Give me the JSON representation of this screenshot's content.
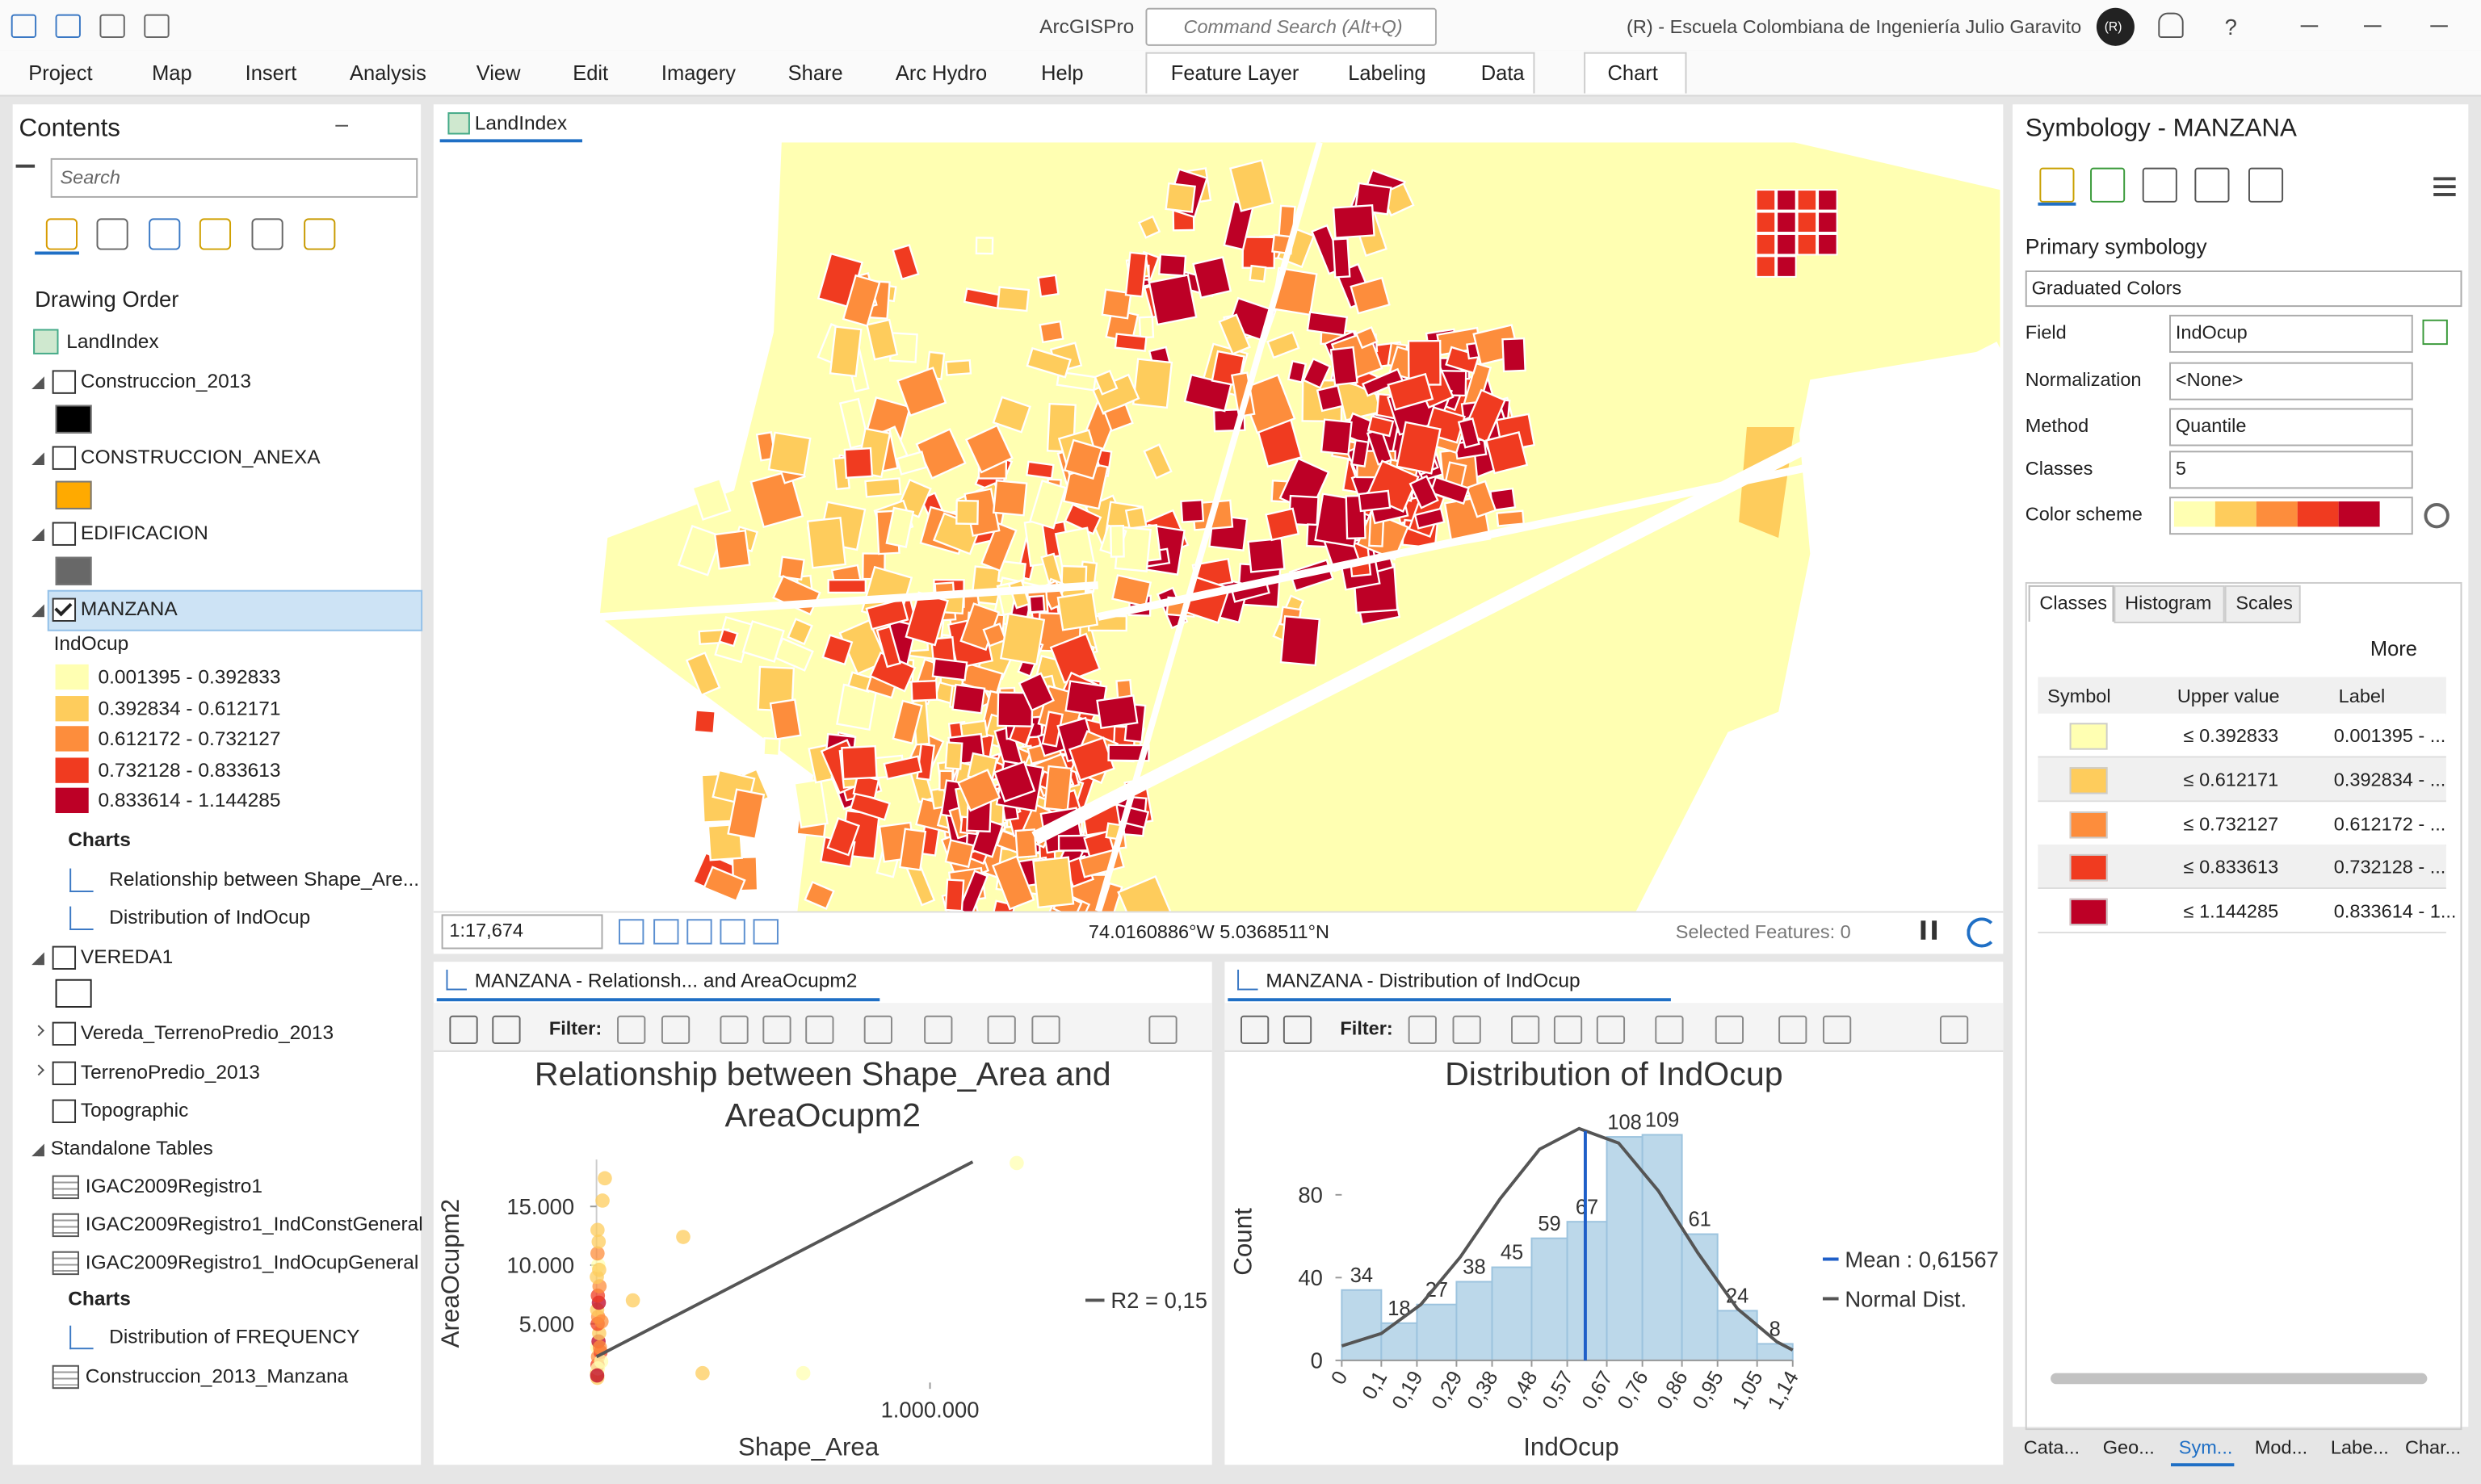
{
  "title_bar": {
    "app": "ArcGISPro",
    "search": "Command Search (Alt+Q)",
    "user": "(R) - Escuela Colombiana de Ingeniería Julio Garavito",
    "avatar": "(R)",
    "help": "?"
  },
  "ribbon_tabs": [
    "Project",
    "Map",
    "Insert",
    "Analysis",
    "View",
    "Edit",
    "Imagery",
    "Share",
    "Arc Hydro",
    "Help"
  ],
  "context_tabs": [
    "Feature Layer",
    "Labeling",
    "Data",
    "Chart"
  ],
  "contents": {
    "title": "Contents",
    "search": "Search",
    "drawing_order": "Drawing Order",
    "map": "LandIndex",
    "layers": [
      {
        "name": "Construccion_2013",
        "swatch": "#000000"
      },
      {
        "name": "CONSTRUCCION_ANEXA",
        "swatch": "#ffaa00"
      },
      {
        "name": "EDIFICACION",
        "swatch": "#686868"
      }
    ],
    "manzana": {
      "name": "MANZANA",
      "field": "IndOcup",
      "classes": [
        "0.001395 - 0.392833",
        "0.392834 - 0.612171",
        "0.612172 - 0.732127",
        "0.732128 - 0.833613",
        "0.833614 - 1.144285"
      ],
      "charts_heading": "Charts",
      "charts": [
        "Relationship between Shape_Are...",
        "Distribution of IndOcup"
      ]
    },
    "vereda": {
      "name": "VEREDA1",
      "swatch": "#ffffff"
    },
    "more_layers": [
      "Vereda_TerrenoPredio_2013",
      "TerrenoPredio_2013",
      "Topographic"
    ],
    "tables_heading": "Standalone Tables",
    "tables": [
      "IGAC2009Registro1",
      "IGAC2009Registro1_IndConstGeneral",
      "IGAC2009Registro1_IndOcupGeneral"
    ],
    "tables_charts_heading": "Charts",
    "tables_charts": [
      "Distribution of FREQUENCY"
    ],
    "last_table": "Construccion_2013_Manzana"
  },
  "map": {
    "tab": "LandIndex",
    "scale": "1:17,674",
    "coords": "74.0160886°W 5.0368511°N",
    "selected": "Selected Features: 0"
  },
  "symbology": {
    "title": "Symbology - MANZANA",
    "primary": "Primary symbology",
    "renderer": "Graduated Colors",
    "fields": [
      {
        "label": "Field",
        "value": "IndOcup"
      },
      {
        "label": "Normalization",
        "value": "<None>"
      },
      {
        "label": "Method",
        "value": "Quantile"
      },
      {
        "label": "Classes",
        "value": "5"
      },
      {
        "label": "Color scheme"
      }
    ],
    "tabs": [
      "Classes",
      "Histogram",
      "Scales"
    ],
    "more": "More",
    "columns": [
      "Symbol",
      "Upper value",
      "Label"
    ],
    "classes": [
      {
        "color": "#ffffb2",
        "upper": "≤  0.392833",
        "label": "0.001395 - ..."
      },
      {
        "color": "#fecc5c",
        "upper": "≤  0.612171",
        "label": "0.392834 - ..."
      },
      {
        "color": "#fd8d3c",
        "upper": "≤  0.732127",
        "label": "0.612172 - ..."
      },
      {
        "color": "#f03b20",
        "upper": "≤  0.833613",
        "label": "0.732128 - ..."
      },
      {
        "color": "#bd0026",
        "upper": "≤  1.144285",
        "label": "0.833614 - 1..."
      }
    ]
  },
  "bottom_tabs": [
    "Cata...",
    "Geo...",
    "Sym...",
    "Mod...",
    "Labe...",
    "Char..."
  ],
  "scatter_pane": {
    "tab": "MANZANA - Relationsh... and AreaOcupm2",
    "filter": "Filter:"
  },
  "histogram_pane": {
    "tab": "MANZANA - Distribution of IndOcup",
    "filter": "Filter:"
  },
  "scatter_chart": {
    "type": "scatter",
    "title": "Relationship between Shape_Area and AreaOcupm2",
    "x_label": "Shape_Area",
    "y_label": "AreaOcupm2",
    "xlim": [
      0,
      1300000
    ],
    "ylim": [
      0,
      19000
    ],
    "xticks": [
      {
        "value": 1000000,
        "label": "1.000.000"
      }
    ],
    "yticks": [
      {
        "value": 5000,
        "label": "5.000"
      },
      {
        "value": 10000,
        "label": "10.000"
      },
      {
        "value": 15000,
        "label": "15.000"
      }
    ],
    "x": [
      1500,
      3000,
      4500,
      2500,
      6000,
      8000,
      3500,
      5000,
      2000,
      7000,
      4000,
      9000,
      1000,
      5500,
      3000,
      6500,
      2500,
      12000,
      4000,
      15000,
      2000,
      8000,
      10000,
      3000,
      14000,
      260000,
      109000,
      620000,
      318000,
      1260000,
      25000,
      18000
    ],
    "y": [
      800,
      1500,
      2200,
      3000,
      3500,
      4200,
      5000,
      5600,
      6200,
      6800,
      7400,
      8200,
      9000,
      10000,
      11000,
      12000,
      400,
      2600,
      1200,
      5200,
      600,
      9600,
      3000,
      13000,
      1800,
      12400,
      7000,
      800,
      800,
      18700,
      17400,
      15500
    ],
    "colors": [
      "#fecc5c",
      "#f03b20",
      "#fd8d3c",
      "#ffffb2",
      "#bd0026",
      "#fecc5c",
      "#f03b20",
      "#fd8d3c",
      "#fecc5c",
      "#bd0026",
      "#f03b20",
      "#fd8d3c",
      "#fecc5c",
      "#ffffb2",
      "#fd8d3c",
      "#fecc5c",
      "#fecc5c",
      "#f03b20",
      "#ffffb2",
      "#fd8d3c",
      "#bd0026",
      "#fecc5c",
      "#fd8d3c",
      "#fecc5c",
      "#ffffb2",
      "#fecc5c",
      "#fecc5c",
      "#ffffb2",
      "#fecc5c",
      "#ffffb2",
      "#fecc5c",
      "#fecc5c"
    ],
    "trend": {
      "name": "R2 = 0,15",
      "color": "#555555",
      "x": [
        0,
        1128000
      ],
      "y": [
        2200,
        18800
      ]
    }
  },
  "histogram_chart": {
    "type": "histogram",
    "title": "Distribution of IndOcup",
    "x_label": "IndOcup",
    "y_label": "Count",
    "color": "#bcd8ea",
    "bins": [
      0,
      0.1,
      0.19,
      0.29,
      0.38,
      0.48,
      0.57,
      0.67,
      0.76,
      0.86,
      0.95,
      1.05,
      1.14
    ],
    "values": [
      34,
      18,
      27,
      38,
      45,
      59,
      67,
      108,
      109,
      61,
      24,
      8
    ],
    "xlim": [
      0,
      1.14
    ],
    "ylim": [
      0,
      120
    ],
    "yticks": [
      0,
      40,
      80
    ],
    "xticks": [
      0,
      {
        "value": 0.1,
        "label": "0,1"
      },
      {
        "value": 0.19,
        "label": "0,19"
      },
      {
        "value": 0.29,
        "label": "0,29"
      },
      {
        "value": 0.38,
        "label": "0,38"
      },
      {
        "value": 0.48,
        "label": "0,48"
      },
      {
        "value": 0.57,
        "label": "0,57"
      },
      {
        "value": 0.67,
        "label": "0,67"
      },
      {
        "value": 0.76,
        "label": "0,76"
      },
      {
        "value": 0.86,
        "label": "0,86"
      },
      {
        "value": 0.95,
        "label": "0,95"
      },
      {
        "value": 1.05,
        "label": "1,05"
      },
      {
        "value": 1.14,
        "label": "1,14"
      }
    ],
    "mean": {
      "name": "Mean : 0,61567",
      "value": 0.61567,
      "color": "#1f5fc8"
    },
    "normal": {
      "name": "Normal Dist.",
      "color": "#555555",
      "x": [
        0,
        0.1,
        0.2,
        0.3,
        0.4,
        0.5,
        0.6,
        0.7,
        0.8,
        0.9,
        1.0,
        1.1,
        1.14
      ],
      "y": [
        7,
        13,
        27,
        50,
        78,
        102,
        112,
        105,
        82,
        52,
        25,
        9,
        5
      ]
    }
  }
}
